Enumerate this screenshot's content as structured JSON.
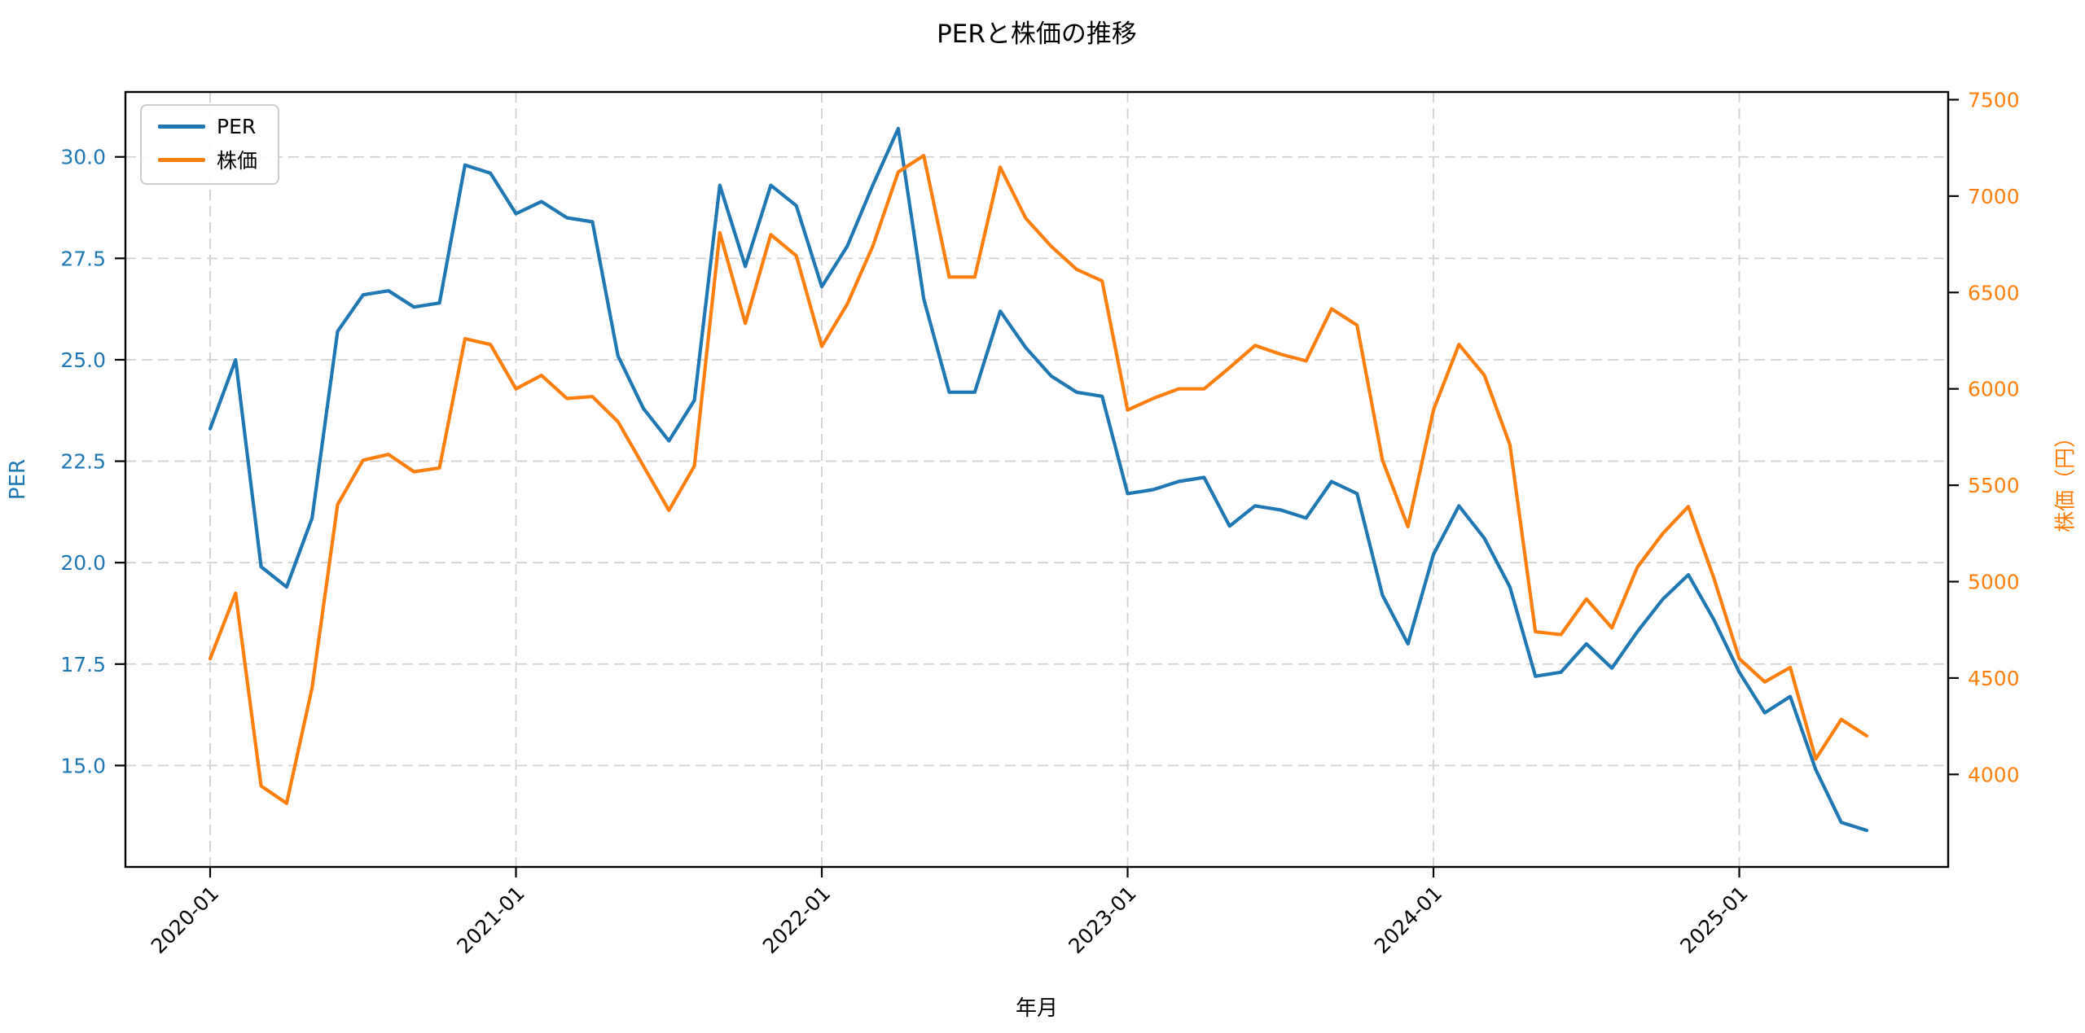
{
  "chart_data": {
    "type": "line",
    "title": "PERと株価の推移",
    "xlabel": "年月",
    "ylabel_left": "PER",
    "ylabel_right": "株価（円）",
    "grid": true,
    "legend_position": "upper left",
    "x": [
      "2020-01",
      "2020-02",
      "2020-03",
      "2020-04",
      "2020-05",
      "2020-06",
      "2020-07",
      "2020-08",
      "2020-09",
      "2020-10",
      "2020-11",
      "2020-12",
      "2021-01",
      "2021-02",
      "2021-03",
      "2021-04",
      "2021-05",
      "2021-06",
      "2021-07",
      "2021-08",
      "2021-09",
      "2021-10",
      "2021-11",
      "2021-12",
      "2022-01",
      "2022-02",
      "2022-03",
      "2022-04",
      "2022-05",
      "2022-06",
      "2022-07",
      "2022-08",
      "2022-09",
      "2022-10",
      "2022-11",
      "2022-12",
      "2023-01",
      "2023-02",
      "2023-03",
      "2023-04",
      "2023-05",
      "2023-06",
      "2023-07",
      "2023-08",
      "2023-09",
      "2023-10",
      "2023-11",
      "2023-12",
      "2024-01",
      "2024-02",
      "2024-03",
      "2024-04",
      "2024-05",
      "2024-06",
      "2024-07",
      "2024-08",
      "2024-09",
      "2024-10",
      "2024-11",
      "2024-12",
      "2025-01",
      "2025-02",
      "2025-03",
      "2025-04",
      "2025-05",
      "2025-06"
    ],
    "xtick_labels": [
      "2020-01",
      "2021-01",
      "2022-01",
      "2023-01",
      "2024-01",
      "2025-01"
    ],
    "ylim_left": [
      12.5,
      31.6
    ],
    "yticks_left": [
      15.0,
      17.5,
      20.0,
      22.5,
      25.0,
      27.5,
      30.0
    ],
    "ylim_right": [
      3520,
      7540
    ],
    "yticks_right": [
      4000,
      4500,
      5000,
      5500,
      6000,
      6500,
      7000,
      7500
    ],
    "series": [
      {
        "name": "PER",
        "axis": "left",
        "color": "#1f77b4",
        "values": [
          23.3,
          25.0,
          19.9,
          19.4,
          21.1,
          25.7,
          26.6,
          26.7,
          26.3,
          26.4,
          29.8,
          29.6,
          28.6,
          28.9,
          28.5,
          28.4,
          25.1,
          23.8,
          23.0,
          24.0,
          29.3,
          27.3,
          29.3,
          28.8,
          26.8,
          27.8,
          29.3,
          30.7,
          26.5,
          24.2,
          24.2,
          26.2,
          25.3,
          24.6,
          24.2,
          24.1,
          21.7,
          21.8,
          22.0,
          22.1,
          20.9,
          21.4,
          21.3,
          21.1,
          22.0,
          21.7,
          19.2,
          18.0,
          20.2,
          21.4,
          20.6,
          19.4,
          17.2,
          17.3,
          18.0,
          17.4,
          18.3,
          19.1,
          19.7,
          18.6,
          17.3,
          16.3,
          16.7,
          14.9,
          13.6,
          13.4
        ]
      },
      {
        "name": "株価",
        "axis": "right",
        "color": "#ff7f0e",
        "values": [
          4600,
          4940,
          3940,
          3850,
          4450,
          5400,
          5630,
          5660,
          5570,
          5590,
          6260,
          6230,
          6000,
          6070,
          5950,
          5960,
          5830,
          5600,
          5370,
          5600,
          6810,
          6340,
          6800,
          6690,
          6220,
          6440,
          6740,
          7125,
          7210,
          6580,
          6580,
          7150,
          6885,
          6740,
          6620,
          6560,
          5890,
          5950,
          6000,
          6000,
          6110,
          6225,
          6180,
          6145,
          6415,
          6330,
          5630,
          5285,
          5890,
          6230,
          6070,
          5710,
          4740,
          4725,
          4910,
          4760,
          5075,
          5250,
          5390,
          5020,
          4600,
          4480,
          4555,
          4080,
          4285,
          4200
        ]
      }
    ]
  },
  "colors": {
    "background": "#ffffff",
    "grid": "#c9c9c9",
    "spine": "#000000",
    "per_series": "#1f77b4",
    "price_series": "#ff7f0e"
  },
  "legend": {
    "items": [
      {
        "label": "PER",
        "color": "#1f77b4"
      },
      {
        "label": "株価",
        "color": "#ff7f0e"
      }
    ]
  }
}
